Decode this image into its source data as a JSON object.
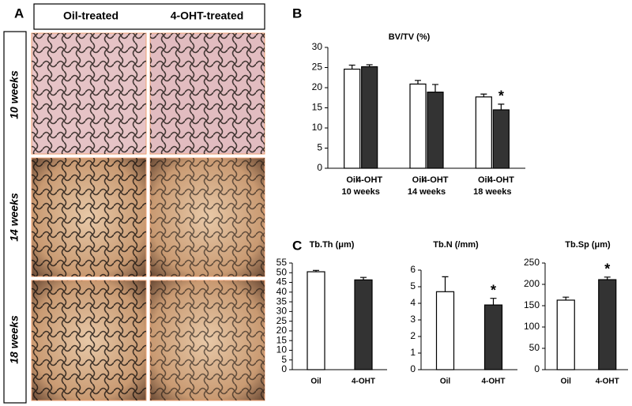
{
  "panel_labels": [
    "A",
    "B",
    "C"
  ],
  "panel_a": {
    "columns": [
      "Oil-treated",
      "4-OHT-treated"
    ],
    "rows": [
      "10 weeks",
      "14 weeks",
      "18 weeks"
    ]
  },
  "chart_data": [
    {
      "type": "bar",
      "title": "BV/TV (%)",
      "categories": [
        "10 weeks",
        "14 weeks",
        "18 weeks"
      ],
      "series": [
        {
          "name": "Oil",
          "color": "#ffffff",
          "values": [
            24.6,
            20.9,
            17.7
          ],
          "errors": [
            1.0,
            0.9,
            0.7
          ],
          "significance": [
            null,
            null,
            null
          ]
        },
        {
          "name": "4-OHT",
          "color": "#333333",
          "values": [
            25.2,
            18.9,
            14.5
          ],
          "errors": [
            0.5,
            1.9,
            1.4
          ],
          "significance": [
            null,
            null,
            "*"
          ]
        }
      ],
      "ylim": [
        0,
        30
      ],
      "yticks": [
        0,
        5,
        10,
        15,
        20,
        25,
        30
      ]
    },
    {
      "type": "bar",
      "title": "Tb.Th (μm)",
      "categories": [
        "Oil",
        "4-OHT"
      ],
      "colors": [
        "#ffffff",
        "#333333"
      ],
      "values": [
        50.5,
        46.3
      ],
      "errors": [
        0.7,
        1.3
      ],
      "significance": [
        null,
        null
      ],
      "ylim": [
        0,
        55
      ],
      "yticks": [
        0,
        5,
        10,
        15,
        20,
        25,
        30,
        35,
        40,
        45,
        50,
        55
      ]
    },
    {
      "type": "bar",
      "title": "Tb.N (/mm)",
      "categories": [
        "Oil",
        "4-OHT"
      ],
      "colors": [
        "#ffffff",
        "#333333"
      ],
      "values": [
        4.7,
        3.9
      ],
      "errors": [
        0.9,
        0.4
      ],
      "significance": [
        null,
        "*"
      ],
      "ylim": [
        0,
        6
      ],
      "yticks": [
        0,
        1,
        2,
        3,
        4,
        5,
        6
      ]
    },
    {
      "type": "bar",
      "title": "Tb.Sp (μm)",
      "categories": [
        "Oil",
        "4-OHT"
      ],
      "colors": [
        "#ffffff",
        "#333333"
      ],
      "values": [
        163,
        211
      ],
      "errors": [
        7,
        6
      ],
      "significance": [
        null,
        "*"
      ],
      "ylim": [
        0,
        250
      ],
      "yticks": [
        0,
        50,
        100,
        150,
        200,
        250
      ]
    }
  ]
}
